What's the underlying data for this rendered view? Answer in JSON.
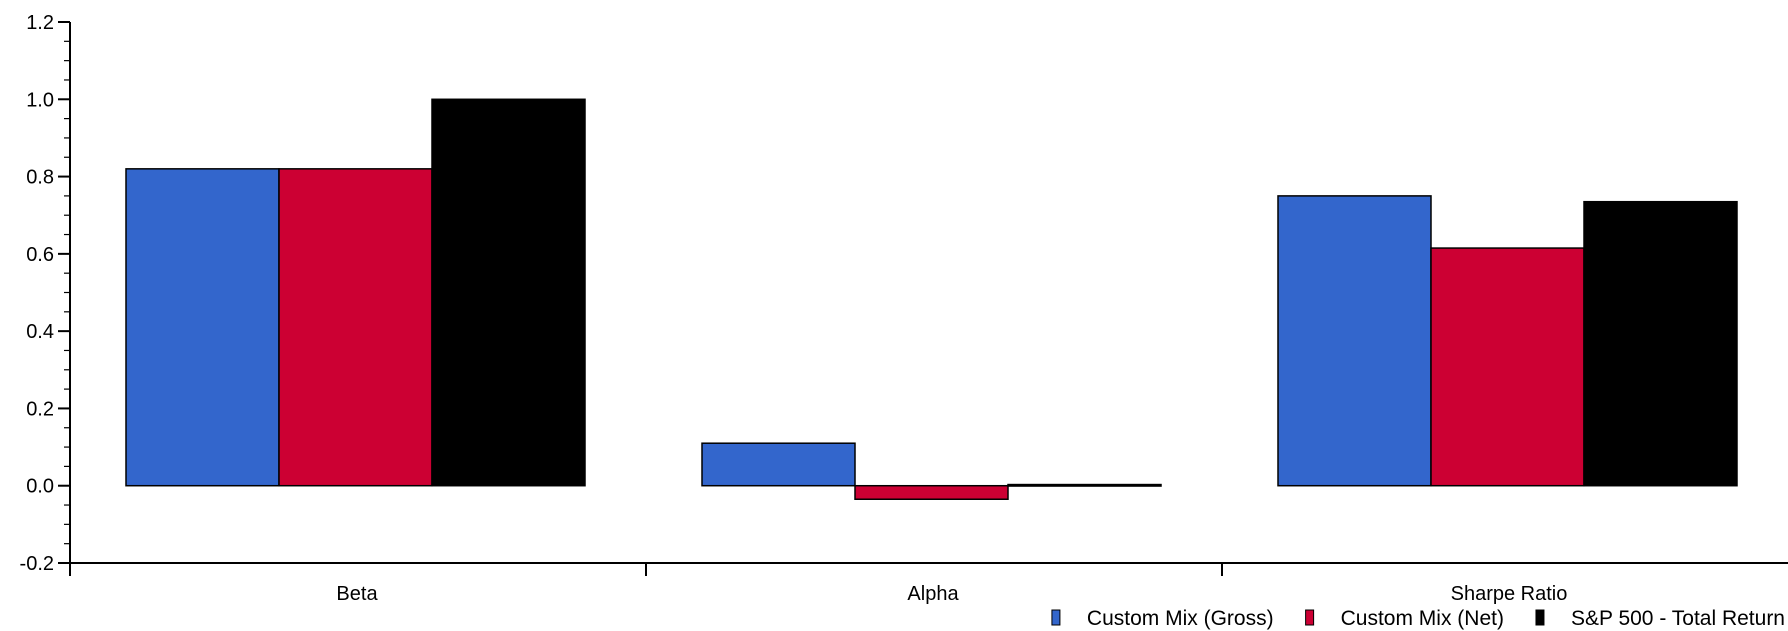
{
  "chart_data": {
    "type": "bar",
    "title": "",
    "xlabel": "",
    "ylabel": "",
    "categories": [
      "Beta",
      "Alpha",
      "Sharpe Ratio"
    ],
    "series": [
      {
        "name": "Custom Mix (Gross)",
        "color": "#3366cc",
        "values": [
          0.82,
          0.11,
          0.75
        ]
      },
      {
        "name": "Custom Mix (Net)",
        "color": "#cc0033",
        "values": [
          0.82,
          -0.035,
          0.615
        ]
      },
      {
        "name": "S&P 500 - Total Return",
        "color": "#000000",
        "values": [
          1.0,
          0.003,
          0.735
        ]
      }
    ],
    "ylim": [
      -0.2,
      1.2
    ],
    "yticks": [
      "-0.2",
      "0.0",
      "0.2",
      "0.4",
      "0.6",
      "0.8",
      "1.0",
      "1.2"
    ],
    "grid": false,
    "legend_position": "bottom-right"
  }
}
